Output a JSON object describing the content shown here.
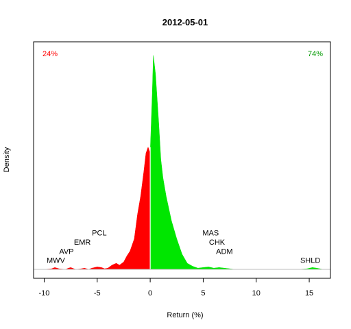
{
  "chart_data": {
    "type": "area",
    "title": "2012-05-01",
    "xlabel": "Return (%)",
    "ylabel": "Density",
    "xlim": [
      -11,
      17
    ],
    "ylim": [
      0,
      0.36
    ],
    "x_ticks": [
      -10,
      -5,
      0,
      5,
      10,
      15
    ],
    "x_tick_labels": [
      "-10",
      "-5",
      "0",
      "5",
      "10",
      "15"
    ],
    "negative_share_label": "24%",
    "positive_share_label": "74%",
    "colors": {
      "negative": "#ff0000",
      "positive": "#00e600",
      "frame": "#000000",
      "baseline": "#bebebe"
    },
    "density_curve": {
      "x": [
        -10,
        -9.3,
        -9,
        -8.6,
        -8,
        -7.7,
        -7.5,
        -7.2,
        -7,
        -6.5,
        -6.2,
        -6,
        -5.8,
        -5.5,
        -5,
        -4.6,
        -4.3,
        -4,
        -3.6,
        -3.2,
        -2.9,
        -2.5,
        -2.2,
        -1.9,
        -1.5,
        -1.2,
        -0.9,
        -0.6,
        -0.4,
        -0.2,
        0,
        0.2,
        0.3,
        0.5,
        0.8,
        1,
        1.2,
        1.5,
        2,
        2.5,
        3,
        3.5,
        4,
        4.5,
        5,
        5.5,
        6,
        6.5,
        7,
        7.5,
        8,
        9,
        10,
        12,
        14,
        14.8,
        15.3,
        15.7,
        16.3
      ],
      "y": [
        0,
        0.001,
        0.003,
        0.001,
        0,
        0.002,
        0.003,
        0.001,
        0,
        0.001,
        0.002,
        0.001,
        0,
        0.002,
        0.004,
        0.003,
        0.001,
        0.002,
        0.007,
        0.01,
        0.007,
        0.012,
        0.022,
        0.03,
        0.05,
        0.09,
        0.12,
        0.16,
        0.19,
        0.2,
        0.19,
        0.29,
        0.35,
        0.32,
        0.24,
        0.18,
        0.15,
        0.12,
        0.08,
        0.05,
        0.025,
        0.01,
        0.005,
        0.002,
        0.003,
        0.004,
        0.002,
        0.003,
        0.002,
        0.001,
        0,
        0,
        0,
        0,
        0,
        0.001,
        0.003,
        0.002,
        0
      ]
    },
    "annotations": [
      {
        "label": "MWV",
        "x": -8.9,
        "y": 0.015
      },
      {
        "label": "AVP",
        "x": -7.9,
        "y": 0.03
      },
      {
        "label": "EMR",
        "x": -6.4,
        "y": 0.045
      },
      {
        "label": "PCL",
        "x": -4.8,
        "y": 0.06
      },
      {
        "label": "MAS",
        "x": 5.7,
        "y": 0.06
      },
      {
        "label": "CHK",
        "x": 6.3,
        "y": 0.045
      },
      {
        "label": "ADM",
        "x": 7.0,
        "y": 0.03
      },
      {
        "label": "SHLD",
        "x": 15.1,
        "y": 0.015
      }
    ]
  }
}
